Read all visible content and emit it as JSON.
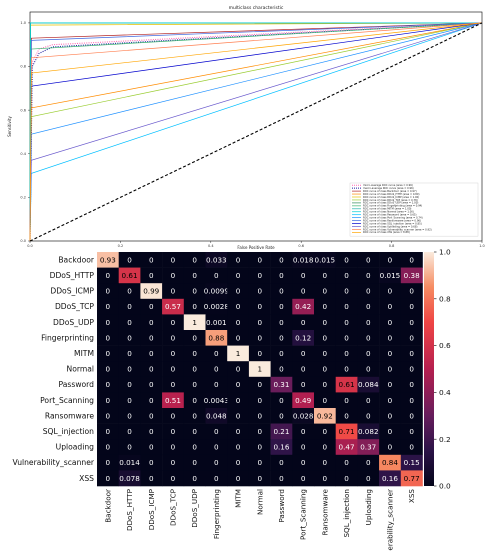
{
  "chart_data": [
    {
      "type": "line",
      "title": "multiclass characteristic",
      "xlabel": "False Positive Rate",
      "ylabel": "Sensitivity",
      "xlim": [
        0,
        1
      ],
      "ylim": [
        0,
        1.05
      ],
      "x_ticks": [
        "0.0",
        "0.2",
        "0.4",
        "0.6",
        "0.8",
        "1.0"
      ],
      "y_ticks": [
        "0.0",
        "0.2",
        "0.4",
        "0.6",
        "0.8",
        "1.0"
      ],
      "legend_position": "lower-right",
      "series": [
        {
          "name": "micro-average ROC curve (area = 0.96)",
          "color": "#ff69b4",
          "style": "dotted",
          "x": [
            0,
            0.005,
            0.02,
            0.05,
            1
          ],
          "y": [
            0,
            0.82,
            0.88,
            0.9,
            1
          ]
        },
        {
          "name": "macro-average ROC curve (area = 0.96)",
          "color": "#1f1fa0",
          "style": "dotted",
          "x": [
            0,
            0.005,
            0.02,
            0.05,
            1
          ],
          "y": [
            0,
            0.8,
            0.86,
            0.89,
            1
          ]
        },
        {
          "name": "ROC curve of class Backdoor (area = 0.97)",
          "color": "#b22222",
          "x": [
            0,
            0.003,
            1
          ],
          "y": [
            0,
            0.93,
            1
          ]
        },
        {
          "name": "ROC curve of class DDoS_HTTP (area = 0.80)",
          "color": "#ff8c00",
          "x": [
            0,
            0.003,
            1
          ],
          "y": [
            0,
            0.61,
            1
          ]
        },
        {
          "name": "ROC curve of class DDoS_ICMP (area = 1.00)",
          "color": "#e6c200",
          "x": [
            0,
            0.001,
            1
          ],
          "y": [
            0,
            0.99,
            1
          ]
        },
        {
          "name": "ROC curve of class DDoS_TCP (area = 0.78)",
          "color": "#9acd32",
          "x": [
            0,
            0.003,
            1
          ],
          "y": [
            0,
            0.57,
            1
          ]
        },
        {
          "name": "ROC curve of class DDoS_UDP (area = 1.00)",
          "color": "#2e8b57",
          "x": [
            0,
            0.001,
            1
          ],
          "y": [
            0,
            1.0,
            1
          ]
        },
        {
          "name": "ROC curve of class Fingerprinting (area = 0.94)",
          "color": "#3cb371",
          "x": [
            0,
            0.003,
            1
          ],
          "y": [
            0,
            0.88,
            1
          ]
        },
        {
          "name": "ROC curve of class MITM (area = 1.00)",
          "color": "#20b2aa",
          "x": [
            0,
            0.001,
            1
          ],
          "y": [
            0,
            1.0,
            1
          ]
        },
        {
          "name": "ROC curve of class Normal (area = 1.00)",
          "color": "#00ced1",
          "x": [
            0,
            0.001,
            1
          ],
          "y": [
            0,
            1.0,
            1
          ]
        },
        {
          "name": "ROC curve of class Password (area = 0.65)",
          "color": "#00bfff",
          "x": [
            0,
            0.003,
            1
          ],
          "y": [
            0,
            0.31,
            1
          ]
        },
        {
          "name": "ROC curve of class Port_Scanning (area = 0.74)",
          "color": "#1e90ff",
          "x": [
            0,
            0.003,
            1
          ],
          "y": [
            0,
            0.49,
            1
          ]
        },
        {
          "name": "ROC curve of class Ransomware (area = 0.96)",
          "color": "#4169e1",
          "x": [
            0,
            0.003,
            1
          ],
          "y": [
            0,
            0.92,
            1
          ]
        },
        {
          "name": "ROC curve of class SQL_injection (area = 0.85)",
          "color": "#0000cd",
          "x": [
            0,
            0.003,
            1
          ],
          "y": [
            0,
            0.71,
            1
          ]
        },
        {
          "name": "ROC curve of class Uploading (area = 0.68)",
          "color": "#6a5acd",
          "x": [
            0,
            0.003,
            1
          ],
          "y": [
            0,
            0.37,
            1
          ]
        },
        {
          "name": "ROC curve of class Vulnerability_scanner (area = 0.92)",
          "color": "#ff7f50",
          "x": [
            0,
            0.003,
            1
          ],
          "y": [
            0,
            0.84,
            1
          ]
        },
        {
          "name": "ROC curve of class XSS (area = 0.88)",
          "color": "#ffa500",
          "x": [
            0,
            0.003,
            1
          ],
          "y": [
            0,
            0.77,
            1
          ]
        },
        {
          "name": "",
          "color": "#000000",
          "style": "dashed",
          "x": [
            0,
            1
          ],
          "y": [
            0,
            1
          ]
        }
      ]
    },
    {
      "type": "heatmap",
      "labels": [
        "Backdoor",
        "DDoS_HTTP",
        "DDoS_ICMP",
        "DDoS_TCP",
        "DDoS_UDP",
        "Fingerprinting",
        "MITM",
        "Normal",
        "Password",
        "Port_Scanning",
        "Ransomware",
        "SQL_injection",
        "Uploading",
        "Vulnerability_scanner",
        "XSS"
      ],
      "matrix": [
        [
          "0.93",
          "0",
          "0",
          "0",
          "0",
          "0.033",
          "0",
          "0",
          "0",
          "0.018",
          "0.015",
          "0",
          "0",
          "0",
          "0"
        ],
        [
          "0",
          "0.61",
          "0",
          "0",
          "0",
          "0",
          "0",
          "0",
          "0",
          "0",
          "0",
          "0",
          "0",
          "0.015",
          "0.38"
        ],
        [
          "0",
          "0",
          "0.99",
          "0",
          "0",
          "0.0099",
          "0",
          "0",
          "0",
          "0",
          "0",
          "0",
          "0",
          "0",
          "0"
        ],
        [
          "0",
          "0",
          "0",
          "0.57",
          "0",
          "0.0028",
          "0",
          "0",
          "0",
          "0.42",
          "0",
          "0",
          "0",
          "0",
          "0"
        ],
        [
          "0",
          "0",
          "0",
          "0",
          "1",
          "0.001",
          "0",
          "0",
          "0",
          "0",
          "0",
          "0",
          "0",
          "0",
          "0"
        ],
        [
          "0",
          "0",
          "0",
          "0",
          "0",
          "0.88",
          "0",
          "0",
          "0",
          "0.12",
          "0",
          "0",
          "0",
          "0",
          "0"
        ],
        [
          "0",
          "0",
          "0",
          "0",
          "0",
          "0",
          "1",
          "0",
          "0",
          "0",
          "0",
          "0",
          "0",
          "0",
          "0"
        ],
        [
          "0",
          "0",
          "0",
          "0",
          "0",
          "0",
          "0",
          "1",
          "0",
          "0",
          "0",
          "0",
          "0",
          "0",
          "0"
        ],
        [
          "0",
          "0",
          "0",
          "0",
          "0",
          "0",
          "0",
          "0",
          "0.31",
          "0",
          "0",
          "0.61",
          "0.084",
          "0",
          "0"
        ],
        [
          "0",
          "0",
          "0",
          "0.51",
          "0",
          "0.0043",
          "0",
          "0",
          "0",
          "0.49",
          "0",
          "0",
          "0",
          "0",
          "0"
        ],
        [
          "0",
          "0",
          "0",
          "0",
          "0",
          "0.048",
          "0",
          "0",
          "0",
          "0.028",
          "0.92",
          "0",
          "0",
          "0",
          "0"
        ],
        [
          "0",
          "0",
          "0",
          "0",
          "0",
          "0",
          "0",
          "0",
          "0.21",
          "0",
          "0",
          "0.71",
          "0.082",
          "0",
          "0"
        ],
        [
          "0",
          "0",
          "0",
          "0",
          "0",
          "0",
          "0",
          "0",
          "0.16",
          "0",
          "0",
          "0.47",
          "0.37",
          "0",
          "0"
        ],
        [
          "0",
          "0.014",
          "0",
          "0",
          "0",
          "0",
          "0",
          "0",
          "0",
          "0",
          "0",
          "0",
          "0",
          "0.84",
          "0.15"
        ],
        [
          "0",
          "0.078",
          "0",
          "0",
          "0",
          "0",
          "0",
          "0",
          "0",
          "0",
          "0",
          "0",
          "0",
          "0.16",
          "0.77"
        ]
      ],
      "colorbar_ticks": [
        "0.0",
        "0.2",
        "0.4",
        "0.6",
        "0.8",
        "1.0"
      ],
      "colorbar_range": [
        0,
        1
      ]
    }
  ]
}
